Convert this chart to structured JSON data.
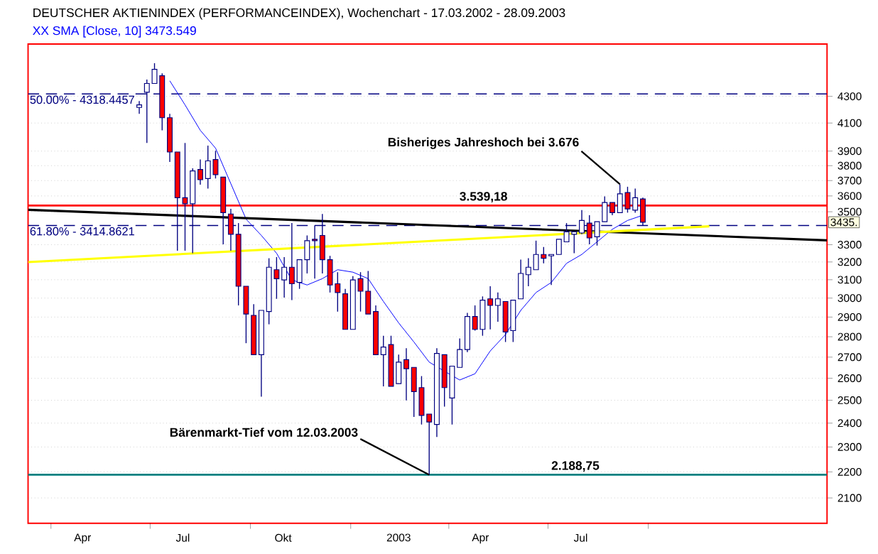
{
  "chart_data": {
    "type": "candlestick",
    "title": "DEUTSCHER AKTIENINDEX (PERFORMANCEINDEX), Wochenchart - 17.03.2002 - 28.09.2003",
    "x": [
      "2002-06-21",
      "2002-06-28",
      "2002-07-05",
      "2002-07-12",
      "2002-07-19",
      "2002-07-26",
      "2002-08-02",
      "2002-08-09",
      "2002-08-16",
      "2002-08-23",
      "2002-08-30",
      "2002-09-06",
      "2002-09-13",
      "2002-09-20",
      "2002-09-27",
      "2002-10-04",
      "2002-10-11",
      "2002-10-18",
      "2002-10-25",
      "2002-11-01",
      "2002-11-08",
      "2002-11-15",
      "2002-11-22",
      "2002-11-29",
      "2002-12-06",
      "2002-12-13",
      "2002-12-20",
      "2002-12-27",
      "2003-01-03",
      "2003-01-10",
      "2003-01-17",
      "2003-01-24",
      "2003-01-31",
      "2003-02-07",
      "2003-02-14",
      "2003-02-21",
      "2003-02-28",
      "2003-03-07",
      "2003-03-14",
      "2003-03-21",
      "2003-03-28",
      "2003-04-04",
      "2003-04-11",
      "2003-04-18",
      "2003-04-25",
      "2003-05-02",
      "2003-05-09",
      "2003-05-16",
      "2003-05-23",
      "2003-05-30",
      "2003-06-06",
      "2003-06-13",
      "2003-06-20",
      "2003-06-27",
      "2003-07-04",
      "2003-07-11",
      "2003-07-18",
      "2003-07-25",
      "2003-08-01",
      "2003-08-08",
      "2003-08-15",
      "2003-08-22",
      "2003-08-29",
      "2003-09-05",
      "2003-09-12",
      "2003-09-19",
      "2003-09-26"
    ],
    "ohlc": [
      [
        4216,
        4264,
        4168,
        4235
      ],
      [
        4332,
        4431,
        3957,
        4400
      ],
      [
        4400,
        4562,
        4400,
        4512
      ],
      [
        4461,
        4481,
        4047,
        4139
      ],
      [
        4139,
        4168,
        3825,
        3894
      ],
      [
        3894,
        3894,
        3265,
        3589
      ],
      [
        3589,
        3957,
        3265,
        3550
      ],
      [
        3550,
        3782,
        3250,
        3765
      ],
      [
        3774,
        3842,
        3673,
        3706
      ],
      [
        3714,
        3939,
        3648,
        3833
      ],
      [
        3842,
        3903,
        3714,
        3740
      ],
      [
        3723,
        3723,
        3302,
        3494
      ],
      [
        3486,
        3518,
        3265,
        3362
      ],
      [
        3362,
        3430,
        2961,
        3064
      ],
      [
        3064,
        3064,
        2768,
        2916
      ],
      [
        2909,
        2968,
        2712,
        2712
      ],
      [
        2712,
        2935,
        2516,
        2935
      ],
      [
        2929,
        3221,
        2863,
        3170
      ],
      [
        3156,
        3228,
        2996,
        3106
      ],
      [
        3099,
        3228,
        3003,
        3170
      ],
      [
        3170,
        3430,
        2989,
        3078
      ],
      [
        3085,
        3213,
        3050,
        3213
      ],
      [
        3213,
        3355,
        3135,
        3324
      ],
      [
        3332,
        3415,
        3106,
        3324
      ],
      [
        3355,
        3486,
        3135,
        3213
      ],
      [
        3213,
        3235,
        3030,
        3071
      ],
      [
        3078,
        3142,
        2929,
        3030
      ],
      [
        3023,
        3050,
        2837,
        2837
      ],
      [
        2837,
        3120,
        2837,
        3099
      ],
      [
        3106,
        3142,
        2929,
        3037
      ],
      [
        3037,
        3149,
        2916,
        2916
      ],
      [
        2929,
        2961,
        2712,
        2712
      ],
      [
        2712,
        2805,
        2563,
        2749
      ],
      [
        2761,
        2805,
        2563,
        2563
      ],
      [
        2575,
        2712,
        2575,
        2676
      ],
      [
        2688,
        2743,
        2499,
        2645
      ],
      [
        2651,
        2651,
        2427,
        2539
      ],
      [
        2557,
        2610,
        2394,
        2433
      ],
      [
        2439,
        2439,
        2188.75,
        2405
      ],
      [
        2394,
        2743,
        2341,
        2718
      ],
      [
        2712,
        2712,
        2472,
        2557
      ],
      [
        2510,
        2657,
        2394,
        2657
      ],
      [
        2651,
        2792,
        2651,
        2737
      ],
      [
        2737,
        2922,
        2724,
        2903
      ],
      [
        2903,
        2961,
        2831,
        2837
      ],
      [
        2837,
        3009,
        2805,
        2989
      ],
      [
        2996,
        3064,
        2837,
        2961
      ],
      [
        2961,
        3030,
        2876,
        2996
      ],
      [
        2982,
        2982,
        2774,
        2824
      ],
      [
        2831,
        2989,
        2774,
        2989
      ],
      [
        2996,
        3213,
        2996,
        3135
      ],
      [
        3128,
        3221,
        3064,
        3170
      ],
      [
        3156,
        3324,
        3156,
        3243
      ],
      [
        3243,
        3287,
        3192,
        3221
      ],
      [
        3235,
        3243,
        3071,
        3243
      ],
      [
        3243,
        3332,
        3243,
        3332
      ],
      [
        3317,
        3430,
        3317,
        3377
      ],
      [
        3362,
        3377,
        3250,
        3377
      ],
      [
        3370,
        3510,
        3362,
        3446
      ],
      [
        3430,
        3478,
        3302,
        3340
      ],
      [
        3347,
        3438,
        3295,
        3438
      ],
      [
        3438,
        3597,
        3438,
        3558
      ],
      [
        3558,
        3558,
        3478,
        3494
      ],
      [
        3494,
        3676,
        3494,
        3614
      ],
      [
        3622,
        3660,
        3494,
        3518
      ],
      [
        3510,
        3648,
        3494,
        3589
      ],
      [
        3581,
        3589,
        3415,
        3435
      ]
    ],
    "series": [
      {
        "name": "XX SMA [Close, 10] 3473.549",
        "type": "line",
        "color": "#0000ff",
        "x": [
          "2002-07-19",
          "2002-08-02",
          "2002-08-16",
          "2002-08-30",
          "2002-09-13",
          "2002-09-27",
          "2002-10-11",
          "2002-10-25",
          "2002-11-08",
          "2002-11-22",
          "2002-12-06",
          "2002-12-20",
          "2003-01-03",
          "2003-01-17",
          "2003-01-31",
          "2003-02-14",
          "2003-02-28",
          "2003-03-14",
          "2003-03-28",
          "2003-04-11",
          "2003-04-25",
          "2003-05-09",
          "2003-05-23",
          "2003-06-06",
          "2003-06-20",
          "2003-07-04",
          "2003-07-18",
          "2003-08-01",
          "2003-08-15",
          "2003-08-29",
          "2003-09-12",
          "2003-09-26"
        ],
        "values": [
          4421,
          4235,
          4047,
          3921,
          3680,
          3454,
          3355,
          3250,
          3099,
          3071,
          3106,
          3156,
          3142,
          3106,
          2982,
          2870,
          2774,
          2676,
          2633,
          2592,
          2621,
          2730,
          2811,
          2935,
          3030,
          3085,
          3192,
          3243,
          3317,
          3392,
          3446,
          3478
        ]
      },
      {
        "type": "line",
        "color": "#000000",
        "x": [
          "2002-03-11",
          "2004-03-13"
        ],
        "values": [
          3512,
          3326
        ]
      },
      {
        "type": "line",
        "color": "#ffff00",
        "x": [
          "2002-03-11",
          "2003-11-26"
        ],
        "values": [
          3199,
          3410
        ]
      }
    ],
    "xlim": [
      "2002-03-11",
      "2004-03-13"
    ],
    "xticks": [
      {
        "value": "2002-04-01",
        "label": null
      },
      {
        "value": "2002-04-30",
        "label": "Apr"
      },
      {
        "value": "2002-07-01",
        "label": null
      },
      {
        "value": "2002-07-31",
        "label": "Jul"
      },
      {
        "value": "2002-10-01",
        "label": null
      },
      {
        "value": "2002-10-31",
        "label": "Okt"
      },
      {
        "value": "2003-01-01",
        "label": null
      },
      {
        "value": "2003-02-14",
        "label": "2003"
      },
      {
        "value": "2003-04-01",
        "label": null
      },
      {
        "value": "2003-04-30",
        "label": "Apr"
      },
      {
        "value": "2003-07-01",
        "label": null
      },
      {
        "value": "2003-07-31",
        "label": "Jul"
      },
      {
        "value": "2003-10-01",
        "label": null
      }
    ],
    "ylim": [
      2007,
      4721
    ],
    "yticks": [
      2100,
      2200,
      2300,
      2400,
      2500,
      2600,
      2700,
      2800,
      2900,
      3000,
      3100,
      3200,
      3300,
      3500,
      3600,
      3700,
      3800,
      3900,
      4100,
      4300
    ],
    "log": "y",
    "grid": "y",
    "ref_lines": [
      {
        "axis": "y",
        "value": 4318.4457,
        "color": "#000080",
        "line_style": "dashed"
      },
      {
        "axis": "y",
        "value": 3414.8621,
        "color": "#000080",
        "line_style": "dashed"
      },
      {
        "axis": "y",
        "value": 3539.18,
        "label": "3.539,18",
        "color": "#ff0000",
        "line_style": "solid"
      },
      {
        "axis": "y",
        "value": 2188.75,
        "label": "2.188,75",
        "color": "#008080",
        "line_style": "solid"
      }
    ],
    "annotations": [
      {
        "text": "Bisheriges Jahreshoch bei 3.676",
        "x": "2003-09-05",
        "y": 3676
      },
      {
        "text": "Bärenmarkt-Tief vom 12.03.2003",
        "x": "2003-03-14",
        "y": 2188.75
      },
      {
        "text": "3435.",
        "y": 3435
      },
      {
        "text": "50.00% - 4318.4457",
        "x": "2002-03-11",
        "y": 4318.4457
      },
      {
        "text": "61.80% - 3414.8621",
        "x": "2002-03-11",
        "y": 3414.8621
      }
    ]
  }
}
